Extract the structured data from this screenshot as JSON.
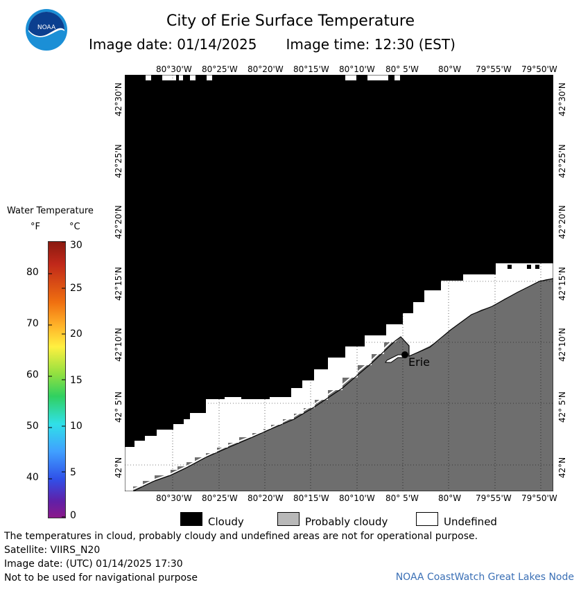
{
  "title": "City of Erie Surface Temperature",
  "image_date": "Image date: 01/14/2025",
  "image_time": "Image time: 12:30 (EST)",
  "logo_text": "NOAA",
  "lon_ticks": [
    "80°30'W",
    "80°25'W",
    "80°20'W",
    "80°15'W",
    "80°10'W",
    "80° 5'W",
    "80°W",
    "79°55'W",
    "79°50'W"
  ],
  "lat_ticks": [
    "42°30'N",
    "42°25'N",
    "42°20'N",
    "42°15'N",
    "42°10'N",
    "42° 5'N",
    "42°N"
  ],
  "city_label": "Erie",
  "legend": {
    "title": "Water Temperature",
    "unit_f": "°F",
    "unit_c": "°C",
    "f_ticks": [
      "80",
      "70",
      "60",
      "50",
      "40"
    ],
    "c_ticks": [
      "30",
      "25",
      "20",
      "15",
      "10",
      "5",
      "0"
    ],
    "cloudy": "Cloudy",
    "probably_cloudy": "Probably cloudy",
    "undefined": "Undefined"
  },
  "colors": {
    "cloudy": "#000000",
    "probably_cloudy": "#b8b8b8",
    "undefined": "#ffffff",
    "land": "#6e6e6e",
    "credit": "#3a6fb5"
  },
  "notes": {
    "disclaimer": "The temperatures in cloud, probably cloudy and undefined areas are not for operational purpose.",
    "satellite": "Satellite: VIIRS_N20",
    "utc_date": "Image date: (UTC) 01/14/2025  17:30",
    "navigation": "Not to be used for navigational purpose"
  },
  "credit": "NOAA CoastWatch Great Lakes Node"
}
